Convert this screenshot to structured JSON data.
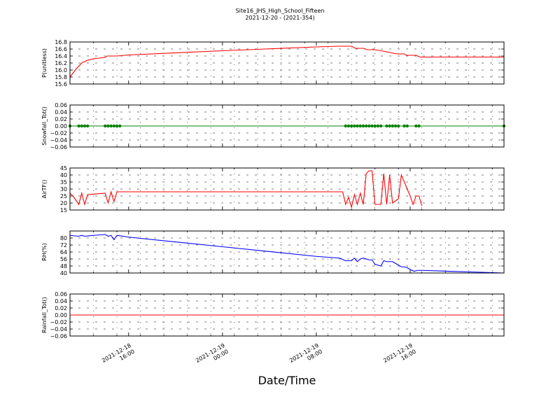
{
  "title": {
    "line1": "Site16_JHS_High_School_Fifteen",
    "line2": "2021-12-20 - (2021-354)"
  },
  "xlabel": "Date/Time",
  "chart_data": {
    "type": "line",
    "x_range": [
      "2021-12-18 11:00",
      "2021-12-20 00:00"
    ],
    "x_tick_labels": [
      {
        "time": "2021-12-18 16:00",
        "line1": "2021-12-18",
        "line2": "16:00"
      },
      {
        "time": "2021-12-19 00:00",
        "line1": "2021-12-19",
        "line2": "00:00"
      },
      {
        "time": "2021-12-19 08:00",
        "line1": "2021-12-19",
        "line2": "08:00"
      },
      {
        "time": "2021-12-19 16:00",
        "line1": "2021-12-19",
        "line2": "16:00"
      }
    ],
    "grid": true,
    "panels": [
      {
        "ylabel": "P(unitless)",
        "ylim": [
          15.6,
          16.8
        ],
        "yticks": [
          15.6,
          15.8,
          16.0,
          16.2,
          16.4,
          16.6,
          16.8
        ],
        "ytick_labels": [
          "15.6",
          "15.8",
          "16.0",
          "16.2",
          "16.4",
          "16.6",
          "16.8"
        ],
        "color": "#ff0000",
        "markers": false,
        "points": [
          [
            "2021-12-18 11:00",
            15.8
          ],
          [
            "2021-12-18 11:30",
            16.02
          ],
          [
            "2021-12-18 12:00",
            16.2
          ],
          [
            "2021-12-18 12:30",
            16.28
          ],
          [
            "2021-12-18 13:00",
            16.32
          ],
          [
            "2021-12-18 14:00",
            16.36
          ],
          [
            "2021-12-18 14:10",
            16.4
          ],
          [
            "2021-12-18 15:00",
            16.4
          ],
          [
            "2021-12-18 16:00",
            16.43
          ],
          [
            "2021-12-19 00:00",
            16.55
          ],
          [
            "2021-12-19 08:00",
            16.66
          ],
          [
            "2021-12-19 10:00",
            16.68
          ],
          [
            "2021-12-19 11:00",
            16.68
          ],
          [
            "2021-12-19 11:20",
            16.62
          ],
          [
            "2021-12-19 12:00",
            16.62
          ],
          [
            "2021-12-19 12:20",
            16.58
          ],
          [
            "2021-12-19 13:00",
            16.58
          ],
          [
            "2021-12-19 14:00",
            16.52
          ],
          [
            "2021-12-19 14:40",
            16.47
          ],
          [
            "2021-12-19 15:00",
            16.46
          ],
          [
            "2021-12-19 15:30",
            16.46
          ],
          [
            "2021-12-19 15:40",
            16.42
          ],
          [
            "2021-12-19 16:30",
            16.42
          ],
          [
            "2021-12-19 16:50",
            16.37
          ],
          [
            "2021-12-20 00:00",
            16.37
          ]
        ]
      },
      {
        "ylabel": "Snowfall_Tot()",
        "ylim": [
          -0.06,
          0.06
        ],
        "yticks": [
          -0.06,
          -0.04,
          -0.02,
          0.0,
          0.02,
          0.04,
          0.06
        ],
        "ytick_labels": [
          "−0.06",
          "−0.04",
          "−0.02",
          "0.00",
          "0.02",
          "0.04",
          "0.06"
        ],
        "color": "#008000",
        "markers": true,
        "points": [
          [
            "2021-12-18 11:00",
            0
          ],
          [
            "2021-12-18 11:45",
            0
          ],
          [
            "2021-12-18 12:00",
            0
          ],
          [
            "2021-12-18 12:15",
            0
          ],
          [
            "2021-12-18 12:30",
            0
          ],
          [
            "2021-12-18 14:00",
            0
          ],
          [
            "2021-12-18 14:15",
            0
          ],
          [
            "2021-12-18 14:30",
            0
          ],
          [
            "2021-12-18 14:45",
            0
          ],
          [
            "2021-12-18 15:00",
            0
          ],
          [
            "2021-12-18 15:15",
            0
          ],
          [
            "2021-12-19 10:30",
            0
          ],
          [
            "2021-12-19 10:45",
            0
          ],
          [
            "2021-12-19 11:00",
            0
          ],
          [
            "2021-12-19 11:15",
            0
          ],
          [
            "2021-12-19 11:30",
            0
          ],
          [
            "2021-12-19 11:45",
            0
          ],
          [
            "2021-12-19 12:00",
            0
          ],
          [
            "2021-12-19 12:15",
            0
          ],
          [
            "2021-12-19 12:30",
            0
          ],
          [
            "2021-12-19 12:45",
            0
          ],
          [
            "2021-12-19 13:00",
            0
          ],
          [
            "2021-12-19 13:15",
            0
          ],
          [
            "2021-12-19 13:30",
            0
          ],
          [
            "2021-12-19 14:00",
            0
          ],
          [
            "2021-12-19 14:15",
            0
          ],
          [
            "2021-12-19 14:30",
            0
          ],
          [
            "2021-12-19 14:45",
            0
          ],
          [
            "2021-12-19 15:00",
            0
          ],
          [
            "2021-12-19 15:30",
            0
          ],
          [
            "2021-12-19 15:45",
            0
          ],
          [
            "2021-12-19 16:30",
            0
          ],
          [
            "2021-12-19 16:45",
            0
          ],
          [
            "2021-12-20 00:00",
            0
          ]
        ]
      },
      {
        "ylabel": "AirTF()",
        "ylim": [
          15,
          45
        ],
        "yticks": [
          15,
          20,
          25,
          30,
          35,
          40,
          45
        ],
        "ytick_labels": [
          "15",
          "20",
          "25",
          "30",
          "35",
          "40",
          "45"
        ],
        "color": "#ff0000",
        "markers": false,
        "points": [
          [
            "2021-12-18 11:00",
            27
          ],
          [
            "2021-12-18 11:15",
            25
          ],
          [
            "2021-12-18 11:30",
            22
          ],
          [
            "2021-12-18 11:45",
            19
          ],
          [
            "2021-12-18 12:00",
            27
          ],
          [
            "2021-12-18 12:15",
            19
          ],
          [
            "2021-12-18 12:30",
            26
          ],
          [
            "2021-12-18 14:00",
            27
          ],
          [
            "2021-12-18 14:15",
            20
          ],
          [
            "2021-12-18 14:30",
            28
          ],
          [
            "2021-12-18 14:45",
            21
          ],
          [
            "2021-12-18 15:00",
            28
          ],
          [
            "2021-12-19 10:15",
            28
          ],
          [
            "2021-12-19 10:30",
            19
          ],
          [
            "2021-12-19 10:45",
            24
          ],
          [
            "2021-12-19 11:00",
            17
          ],
          [
            "2021-12-19 11:15",
            26
          ],
          [
            "2021-12-19 11:30",
            19
          ],
          [
            "2021-12-19 11:45",
            27
          ],
          [
            "2021-12-19 12:00",
            19
          ],
          [
            "2021-12-19 12:15",
            41
          ],
          [
            "2021-12-19 12:30",
            43
          ],
          [
            "2021-12-19 12:45",
            43
          ],
          [
            "2021-12-19 13:00",
            19
          ],
          [
            "2021-12-19 13:30",
            19
          ],
          [
            "2021-12-19 13:45",
            41
          ],
          [
            "2021-12-19 14:00",
            19
          ],
          [
            "2021-12-19 14:15",
            40
          ],
          [
            "2021-12-19 14:30",
            20
          ],
          [
            "2021-12-19 15:00",
            23
          ],
          [
            "2021-12-19 15:15",
            40
          ],
          [
            "2021-12-19 16:00",
            25
          ],
          [
            "2021-12-19 16:15",
            19
          ],
          [
            "2021-12-19 16:30",
            25
          ],
          [
            "2021-12-19 16:45",
            25
          ],
          [
            "2021-12-19 17:00",
            18
          ]
        ]
      },
      {
        "ylabel": "RH(%)",
        "ylim": [
          40,
          88
        ],
        "yticks": [
          40,
          48,
          56,
          64,
          72,
          80
        ],
        "ytick_labels": [
          "40",
          "48",
          "56",
          "64",
          "72",
          "80"
        ],
        "color": "#0000ff",
        "markers": false,
        "points": [
          [
            "2021-12-18 11:00",
            83
          ],
          [
            "2021-12-18 11:45",
            82
          ],
          [
            "2021-12-18 12:00",
            83
          ],
          [
            "2021-12-18 12:15",
            82
          ],
          [
            "2021-12-18 13:00",
            83
          ],
          [
            "2021-12-18 14:00",
            84
          ],
          [
            "2021-12-18 14:15",
            82
          ],
          [
            "2021-12-18 14:30",
            83
          ],
          [
            "2021-12-18 14:45",
            78
          ],
          [
            "2021-12-18 15:00",
            83
          ],
          [
            "2021-12-18 16:00",
            81
          ],
          [
            "2021-12-19 00:00",
            70
          ],
          [
            "2021-12-19 08:00",
            59
          ],
          [
            "2021-12-19 10:00",
            57
          ],
          [
            "2021-12-19 10:30",
            54
          ],
          [
            "2021-12-19 11:00",
            54
          ],
          [
            "2021-12-19 11:15",
            57
          ],
          [
            "2021-12-19 11:30",
            53
          ],
          [
            "2021-12-19 11:45",
            56
          ],
          [
            "2021-12-19 12:00",
            57
          ],
          [
            "2021-12-19 12:30",
            55
          ],
          [
            "2021-12-19 12:45",
            55
          ],
          [
            "2021-12-19 13:00",
            50
          ],
          [
            "2021-12-19 13:30",
            48
          ],
          [
            "2021-12-19 13:45",
            54
          ],
          [
            "2021-12-19 14:00",
            53
          ],
          [
            "2021-12-19 14:30",
            53
          ],
          [
            "2021-12-19 14:45",
            51
          ],
          [
            "2021-12-19 15:15",
            47
          ],
          [
            "2021-12-19 15:30",
            47
          ],
          [
            "2021-12-19 15:45",
            46
          ],
          [
            "2021-12-19 16:00",
            44
          ],
          [
            "2021-12-19 16:20",
            42
          ],
          [
            "2021-12-19 16:40",
            43
          ],
          [
            "2021-12-19 17:00",
            43
          ],
          [
            "2021-12-20 00:00",
            40
          ]
        ]
      },
      {
        "ylabel": "Rainfall_Tot()",
        "ylim": [
          -0.06,
          0.06
        ],
        "yticks": [
          -0.06,
          -0.04,
          -0.02,
          0.0,
          0.02,
          0.04,
          0.06
        ],
        "ytick_labels": [
          "−0.06",
          "−0.04",
          "−0.02",
          "0.00",
          "0.02",
          "0.04",
          "0.06"
        ],
        "color": "#ff0000",
        "markers": false,
        "points": [
          [
            "2021-12-18 11:00",
            0
          ],
          [
            "2021-12-20 00:00",
            0
          ]
        ]
      }
    ]
  }
}
